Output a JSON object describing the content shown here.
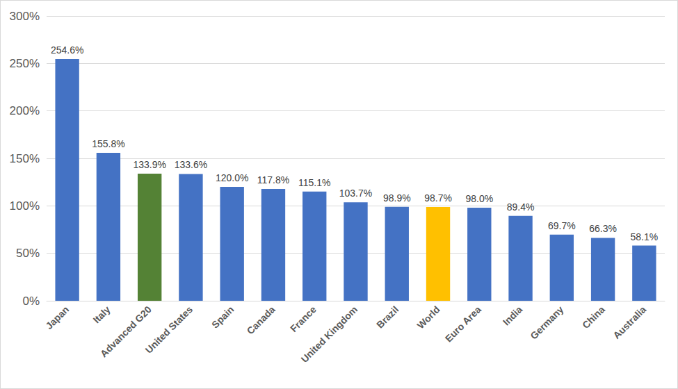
{
  "chart_data": {
    "type": "bar",
    "categories": [
      "Japan",
      "Italy",
      "Advanced G20",
      "United States",
      "Spain",
      "Canada",
      "France",
      "United Kingdom",
      "Brazil",
      "World",
      "Euro Area",
      "India",
      "Germany",
      "China",
      "Australia"
    ],
    "values": [
      254.6,
      155.8,
      133.9,
      133.6,
      120.0,
      117.8,
      115.1,
      103.7,
      98.9,
      98.7,
      98.0,
      89.4,
      69.7,
      66.3,
      58.1
    ],
    "value_labels": [
      "254.6%",
      "155.8%",
      "133.9%",
      "133.6%",
      "120.0%",
      "117.8%",
      "115.1%",
      "103.7%",
      "98.9%",
      "98.7%",
      "98.0%",
      "89.4%",
      "69.7%",
      "66.3%",
      "58.1%"
    ],
    "colors": [
      "#4472c4",
      "#4472c4",
      "#548235",
      "#4472c4",
      "#4472c4",
      "#4472c4",
      "#4472c4",
      "#4472c4",
      "#4472c4",
      "#ffc000",
      "#4472c4",
      "#4472c4",
      "#4472c4",
      "#4472c4",
      "#4472c4"
    ],
    "ylim": [
      0,
      300
    ],
    "yticks": [
      {
        "value": 0,
        "label": "0%"
      },
      {
        "value": 50,
        "label": "50%"
      },
      {
        "value": 100,
        "label": "100%"
      },
      {
        "value": 150,
        "label": "150%"
      },
      {
        "value": 200,
        "label": "200%"
      },
      {
        "value": 250,
        "label": "250%"
      },
      {
        "value": 300,
        "label": "300%"
      }
    ],
    "grid": true,
    "data_labels": true
  }
}
